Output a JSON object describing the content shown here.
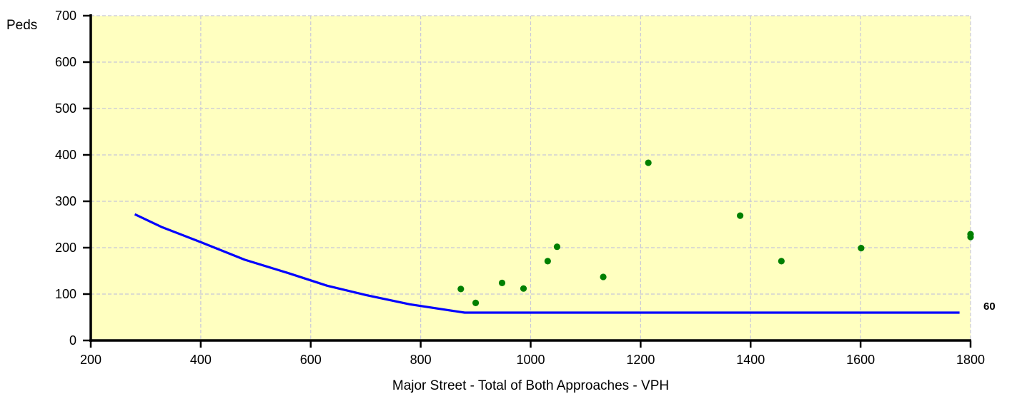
{
  "chart_data": {
    "type": "scatter",
    "xlabel": "Major Street - Total of Both Approaches - VPH",
    "ylabel": "Peds",
    "xlim": [
      200,
      1800
    ],
    "ylim": [
      0,
      700
    ],
    "x_ticks": [
      200,
      400,
      600,
      800,
      1000,
      1200,
      1400,
      1600,
      1800
    ],
    "y_ticks": [
      0,
      100,
      200,
      300,
      400,
      500,
      600,
      700
    ],
    "grid": true,
    "grid_style": "dashed",
    "colors": {
      "plot_background": "#ffffc0",
      "grid": "#c8c8d8",
      "threshold_line": "#0000ff",
      "points": "#008000",
      "axes": "#000000"
    },
    "threshold_curve": {
      "end_label": "60",
      "x": [
        280,
        330,
        400,
        480,
        560,
        630,
        700,
        780,
        880,
        1780
      ],
      "y": [
        272,
        244,
        212,
        174,
        145,
        118,
        98,
        78,
        60,
        60
      ]
    },
    "points": {
      "x": [
        873,
        900,
        948,
        987,
        1031,
        1048,
        1132,
        1214,
        1381,
        1456,
        1601,
        1800,
        1800
      ],
      "y": [
        111,
        81,
        124,
        112,
        171,
        202,
        137,
        383,
        269,
        171,
        199,
        229,
        223
      ]
    }
  }
}
